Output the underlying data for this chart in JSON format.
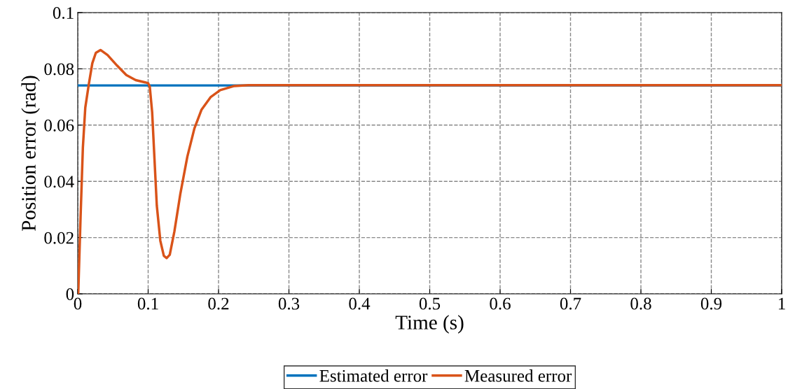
{
  "chart_data": {
    "type": "line",
    "xlabel": "Time (s)",
    "ylabel": "Position error (rad)",
    "xlim": [
      0,
      1
    ],
    "ylim": [
      0,
      0.1
    ],
    "xticks": [
      0,
      0.1,
      0.2,
      0.3,
      0.4,
      0.5,
      0.6,
      0.7,
      0.8,
      0.9,
      1
    ],
    "yticks": [
      0,
      0.02,
      0.04,
      0.06,
      0.08,
      0.1
    ],
    "grid": true,
    "legend": "bottom",
    "line_style": "solid",
    "marker": "none",
    "series": [
      {
        "name": "Estimated error",
        "color": "#0072bd",
        "x": [
          0,
          1
        ],
        "values": [
          0.0741,
          0.0741
        ]
      },
      {
        "name": "Measured error",
        "color": "#d95319",
        "x": [
          0.0007,
          0.004,
          0.0073,
          0.0107,
          0.0157,
          0.0207,
          0.0257,
          0.0323,
          0.0423,
          0.0557,
          0.069,
          0.0823,
          0.0957,
          0.1,
          0.1023,
          0.1057,
          0.109,
          0.1123,
          0.1173,
          0.1223,
          0.1263,
          0.1307,
          0.1373,
          0.1457,
          0.1557,
          0.1657,
          0.1757,
          0.189,
          0.2023,
          0.2223,
          0.2423,
          1
        ],
        "values": [
          0,
          0.0272,
          0.0521,
          0.0662,
          0.0745,
          0.082,
          0.0857,
          0.0867,
          0.0849,
          0.0812,
          0.0778,
          0.076,
          0.0752,
          0.0749,
          0.0737,
          0.0646,
          0.048,
          0.0314,
          0.0189,
          0.0135,
          0.0127,
          0.0139,
          0.0222,
          0.0355,
          0.0488,
          0.0588,
          0.0654,
          0.07,
          0.0724,
          0.0739,
          0.0742,
          0.0742
        ]
      }
    ]
  }
}
